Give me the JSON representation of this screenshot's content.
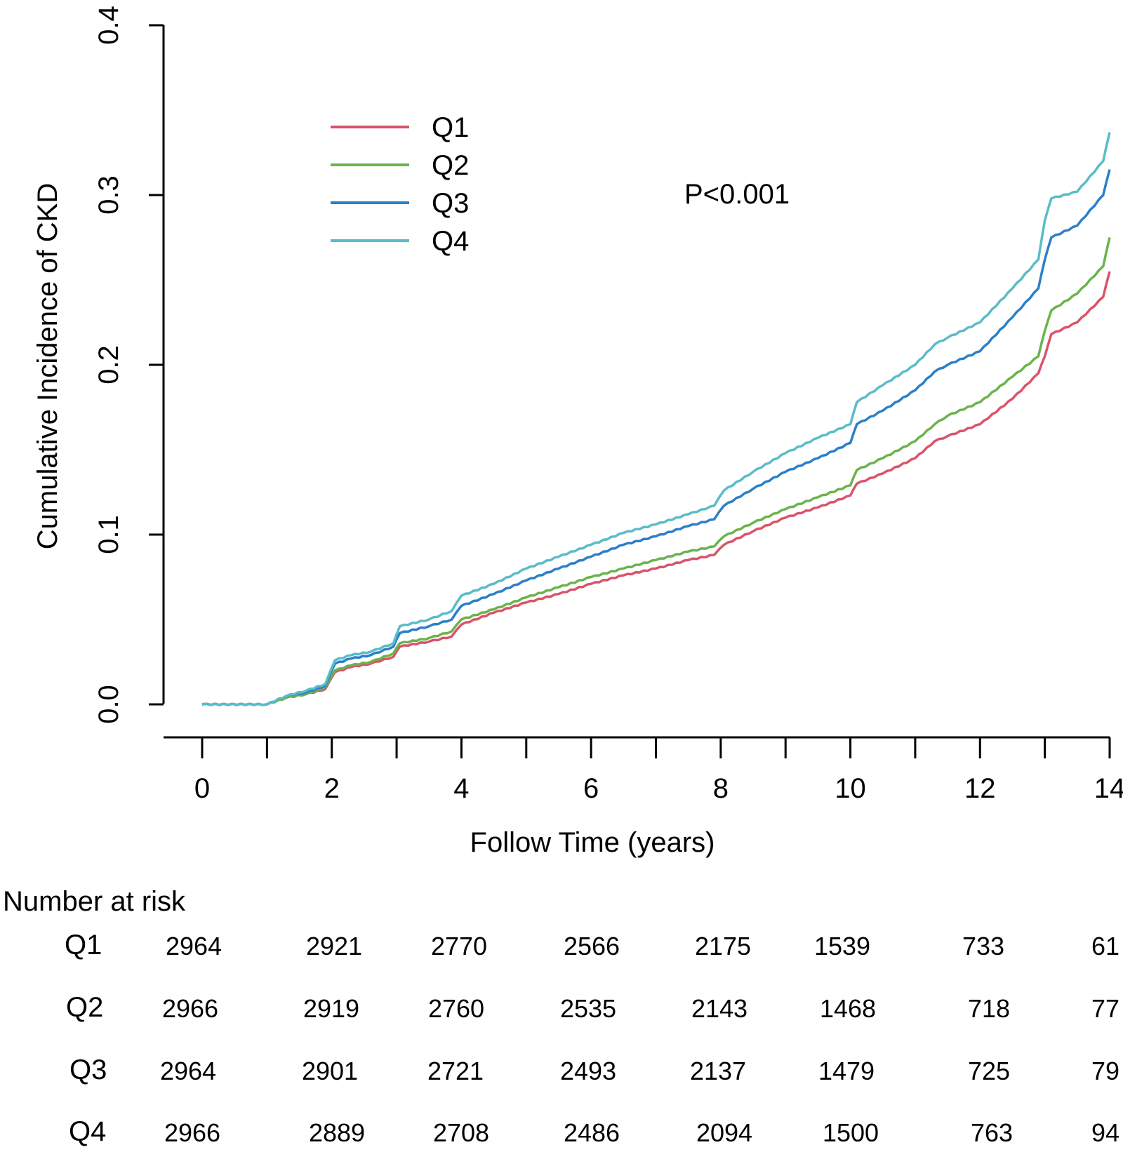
{
  "chart_data": {
    "type": "line",
    "title": "",
    "xlabel": "Follow Time (years)",
    "ylabel": "Cumulative Incidence of  CKD",
    "xlim": [
      0,
      14
    ],
    "ylim": [
      0,
      0.4
    ],
    "x_ticks": [
      0,
      1,
      2,
      3,
      4,
      5,
      6,
      7,
      8,
      9,
      10,
      11,
      12,
      13,
      14
    ],
    "x_tick_labels": [
      "0",
      "2",
      "4",
      "6",
      "8",
      "10",
      "12",
      "14"
    ],
    "x_tick_label_values": [
      0,
      2,
      4,
      6,
      8,
      10,
      12,
      14
    ],
    "y_tick_labels": [
      "0.0",
      "0.1",
      "0.2",
      "0.3",
      "0.4"
    ],
    "y_tick_values": [
      0,
      0.1,
      0.2,
      0.3,
      0.4
    ],
    "annotation": "P<0.001",
    "legend": {
      "placement": "top-left",
      "entries": [
        "Q1",
        "Q2",
        "Q3",
        "Q4"
      ]
    },
    "series": [
      {
        "name": "Q1",
        "color": "#d9546a",
        "x": [
          0,
          1.0,
          1.3,
          1.6,
          1.9,
          2.05,
          2.3,
          2.6,
          2.95,
          3.05,
          3.5,
          3.85,
          4.0,
          4.5,
          5.0,
          5.5,
          6.0,
          6.5,
          7.0,
          7.5,
          7.9,
          8.05,
          8.5,
          9.0,
          9.5,
          10.0,
          10.1,
          10.5,
          11.0,
          11.3,
          11.5,
          12.0,
          12.5,
          12.9,
          13.0,
          13.1,
          13.5,
          13.9,
          14.0
        ],
        "y": [
          0,
          0,
          0.004,
          0.006,
          0.009,
          0.019,
          0.022,
          0.024,
          0.028,
          0.034,
          0.037,
          0.04,
          0.047,
          0.054,
          0.06,
          0.065,
          0.071,
          0.076,
          0.08,
          0.085,
          0.088,
          0.094,
          0.102,
          0.11,
          0.116,
          0.123,
          0.13,
          0.136,
          0.145,
          0.155,
          0.158,
          0.165,
          0.18,
          0.195,
          0.205,
          0.218,
          0.225,
          0.24,
          0.255
        ]
      },
      {
        "name": "Q2",
        "color": "#6bb34c",
        "x": [
          0,
          1.0,
          1.3,
          1.6,
          1.9,
          2.05,
          2.3,
          2.6,
          2.95,
          3.05,
          3.5,
          3.85,
          4.0,
          4.5,
          5.0,
          5.5,
          6.0,
          6.5,
          7.0,
          7.5,
          7.9,
          8.05,
          8.5,
          9.0,
          9.5,
          10.0,
          10.1,
          10.5,
          11.0,
          11.3,
          11.5,
          12.0,
          12.5,
          12.9,
          13.0,
          13.1,
          13.5,
          13.9,
          14.0
        ],
        "y": [
          0,
          0,
          0.004,
          0.006,
          0.01,
          0.02,
          0.023,
          0.025,
          0.03,
          0.036,
          0.039,
          0.043,
          0.05,
          0.056,
          0.063,
          0.069,
          0.075,
          0.08,
          0.085,
          0.09,
          0.093,
          0.099,
          0.107,
          0.115,
          0.122,
          0.129,
          0.138,
          0.145,
          0.155,
          0.165,
          0.17,
          0.178,
          0.193,
          0.205,
          0.22,
          0.232,
          0.242,
          0.258,
          0.275
        ]
      },
      {
        "name": "Q3",
        "color": "#2c7fc9",
        "x": [
          0,
          1.0,
          1.3,
          1.6,
          1.9,
          2.05,
          2.3,
          2.6,
          2.95,
          3.05,
          3.5,
          3.85,
          4.0,
          4.5,
          5.0,
          5.5,
          6.0,
          6.5,
          7.0,
          7.5,
          7.9,
          8.05,
          8.5,
          9.0,
          9.5,
          10.0,
          10.1,
          10.5,
          11.0,
          11.3,
          11.5,
          12.0,
          12.5,
          12.9,
          13.0,
          13.1,
          13.5,
          13.9,
          14.0
        ],
        "y": [
          0,
          0,
          0.005,
          0.007,
          0.011,
          0.024,
          0.027,
          0.029,
          0.034,
          0.042,
          0.046,
          0.05,
          0.058,
          0.065,
          0.073,
          0.08,
          0.087,
          0.094,
          0.099,
          0.105,
          0.109,
          0.117,
          0.127,
          0.137,
          0.145,
          0.154,
          0.165,
          0.173,
          0.185,
          0.196,
          0.2,
          0.208,
          0.228,
          0.245,
          0.262,
          0.275,
          0.282,
          0.3,
          0.315
        ]
      },
      {
        "name": "Q4",
        "color": "#5bbcc8",
        "x": [
          0,
          1.0,
          1.3,
          1.6,
          1.9,
          2.05,
          2.3,
          2.6,
          2.95,
          3.05,
          3.5,
          3.85,
          4.0,
          4.5,
          5.0,
          5.5,
          6.0,
          6.5,
          7.0,
          7.5,
          7.9,
          8.05,
          8.5,
          9.0,
          9.5,
          10.0,
          10.1,
          10.5,
          11.0,
          11.3,
          11.5,
          12.0,
          12.5,
          12.9,
          13.0,
          13.1,
          13.5,
          13.9,
          14.0
        ],
        "y": [
          0,
          0,
          0.005,
          0.008,
          0.012,
          0.026,
          0.029,
          0.031,
          0.036,
          0.046,
          0.05,
          0.055,
          0.064,
          0.071,
          0.08,
          0.087,
          0.094,
          0.101,
          0.106,
          0.112,
          0.117,
          0.126,
          0.137,
          0.148,
          0.157,
          0.165,
          0.178,
          0.188,
          0.2,
          0.212,
          0.216,
          0.225,
          0.245,
          0.262,
          0.285,
          0.298,
          0.302,
          0.32,
          0.337
        ]
      }
    ]
  },
  "risk_table": {
    "title": "Number at risk",
    "times": [
      0,
      2,
      4,
      6,
      8,
      10,
      12,
      14
    ],
    "groups": [
      {
        "name": "Q1",
        "values": [
          "2964",
          "2921",
          "2770",
          "2566",
          "2175",
          "1539",
          "733",
          "61"
        ]
      },
      {
        "name": "Q2",
        "values": [
          "2966",
          "2919",
          "2760",
          "2535",
          "2143",
          "1468",
          "718",
          "77"
        ]
      },
      {
        "name": "Q3",
        "values": [
          "2964",
          "2901",
          "2721",
          "2493",
          "2137",
          "1479",
          "725",
          "79"
        ]
      },
      {
        "name": "Q4",
        "values": [
          "2966",
          "2889",
          "2708",
          "2486",
          "2094",
          "1500",
          "763",
          "94"
        ]
      }
    ]
  }
}
